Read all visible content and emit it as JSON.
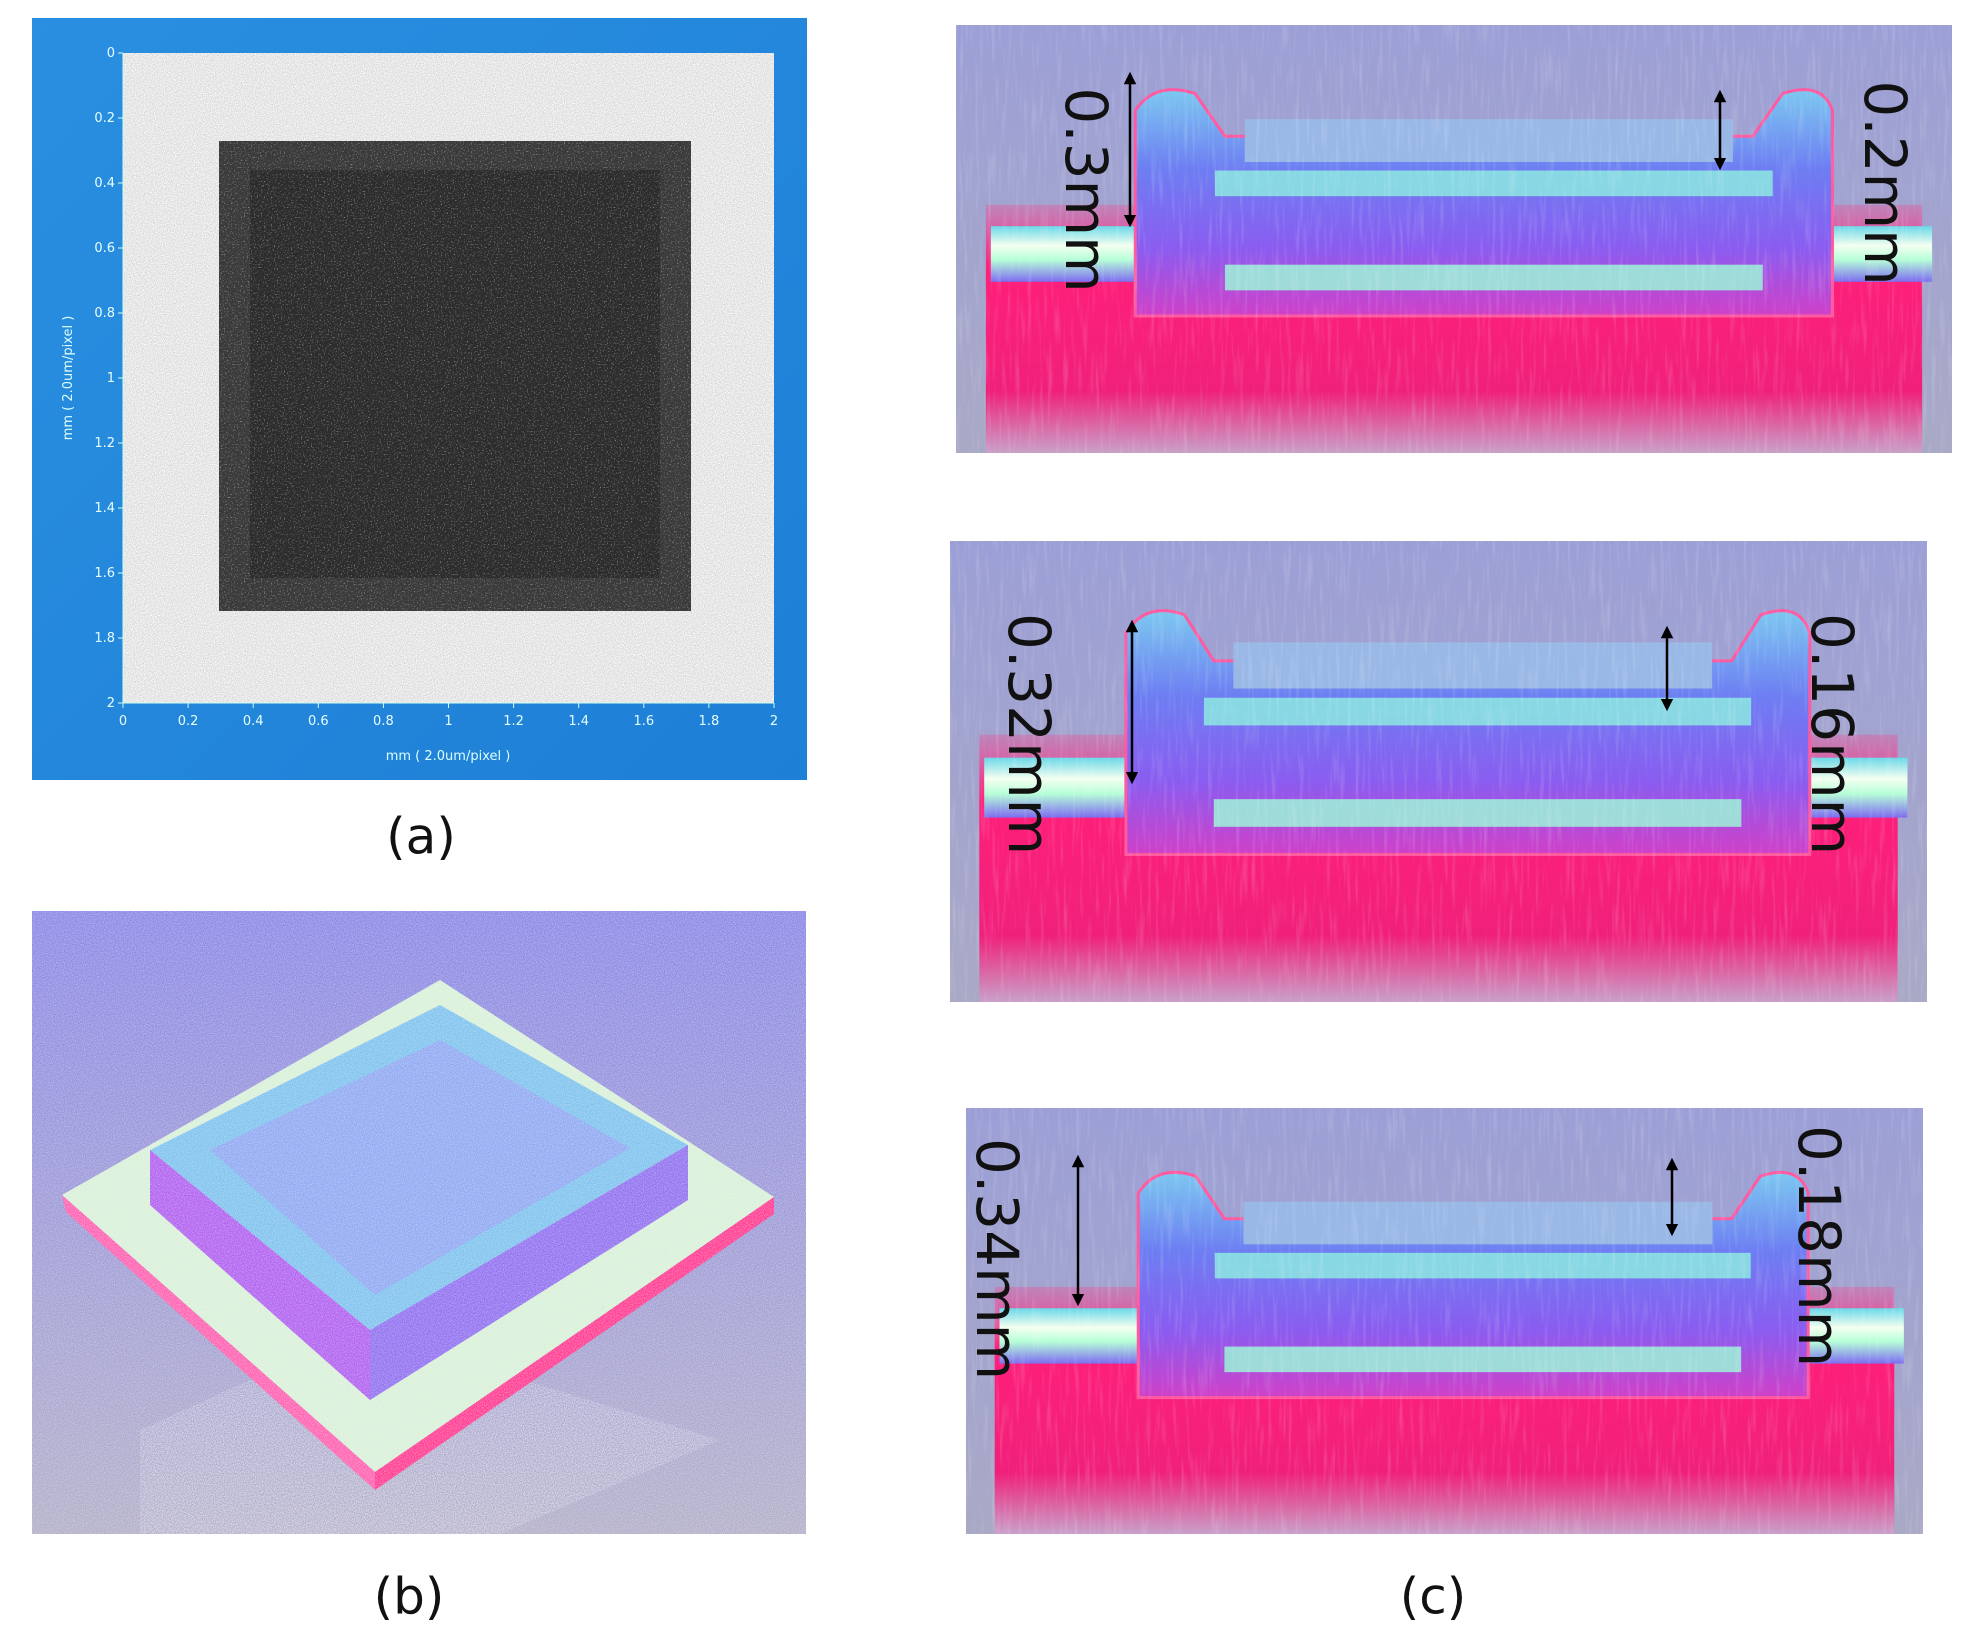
{
  "panels": {
    "a": {
      "label": "(a)",
      "x_axis_label": "mm ( 2.0um/pixel )",
      "y_axis_label": "mm ( 2.0um/pixel )",
      "x_ticks": [
        "0",
        "0.2",
        "0.4",
        "0.6",
        "0.8",
        "1",
        "1.2",
        "1.4",
        "1.6",
        "1.8",
        "2"
      ],
      "y_ticks": [
        "0",
        "0.2",
        "0.4",
        "0.6",
        "0.8",
        "1",
        "1.2",
        "1.4",
        "1.6",
        "1.8",
        "2"
      ]
    },
    "b": {
      "label": "(b)"
    },
    "c": {
      "label": "(c)",
      "profiles": [
        {
          "left": "0.3mm",
          "right": "0.2mm"
        },
        {
          "left": "0.32mm",
          "right": "0.16mm"
        },
        {
          "left": "0.34mm",
          "right": "0.18mm"
        }
      ]
    }
  }
}
